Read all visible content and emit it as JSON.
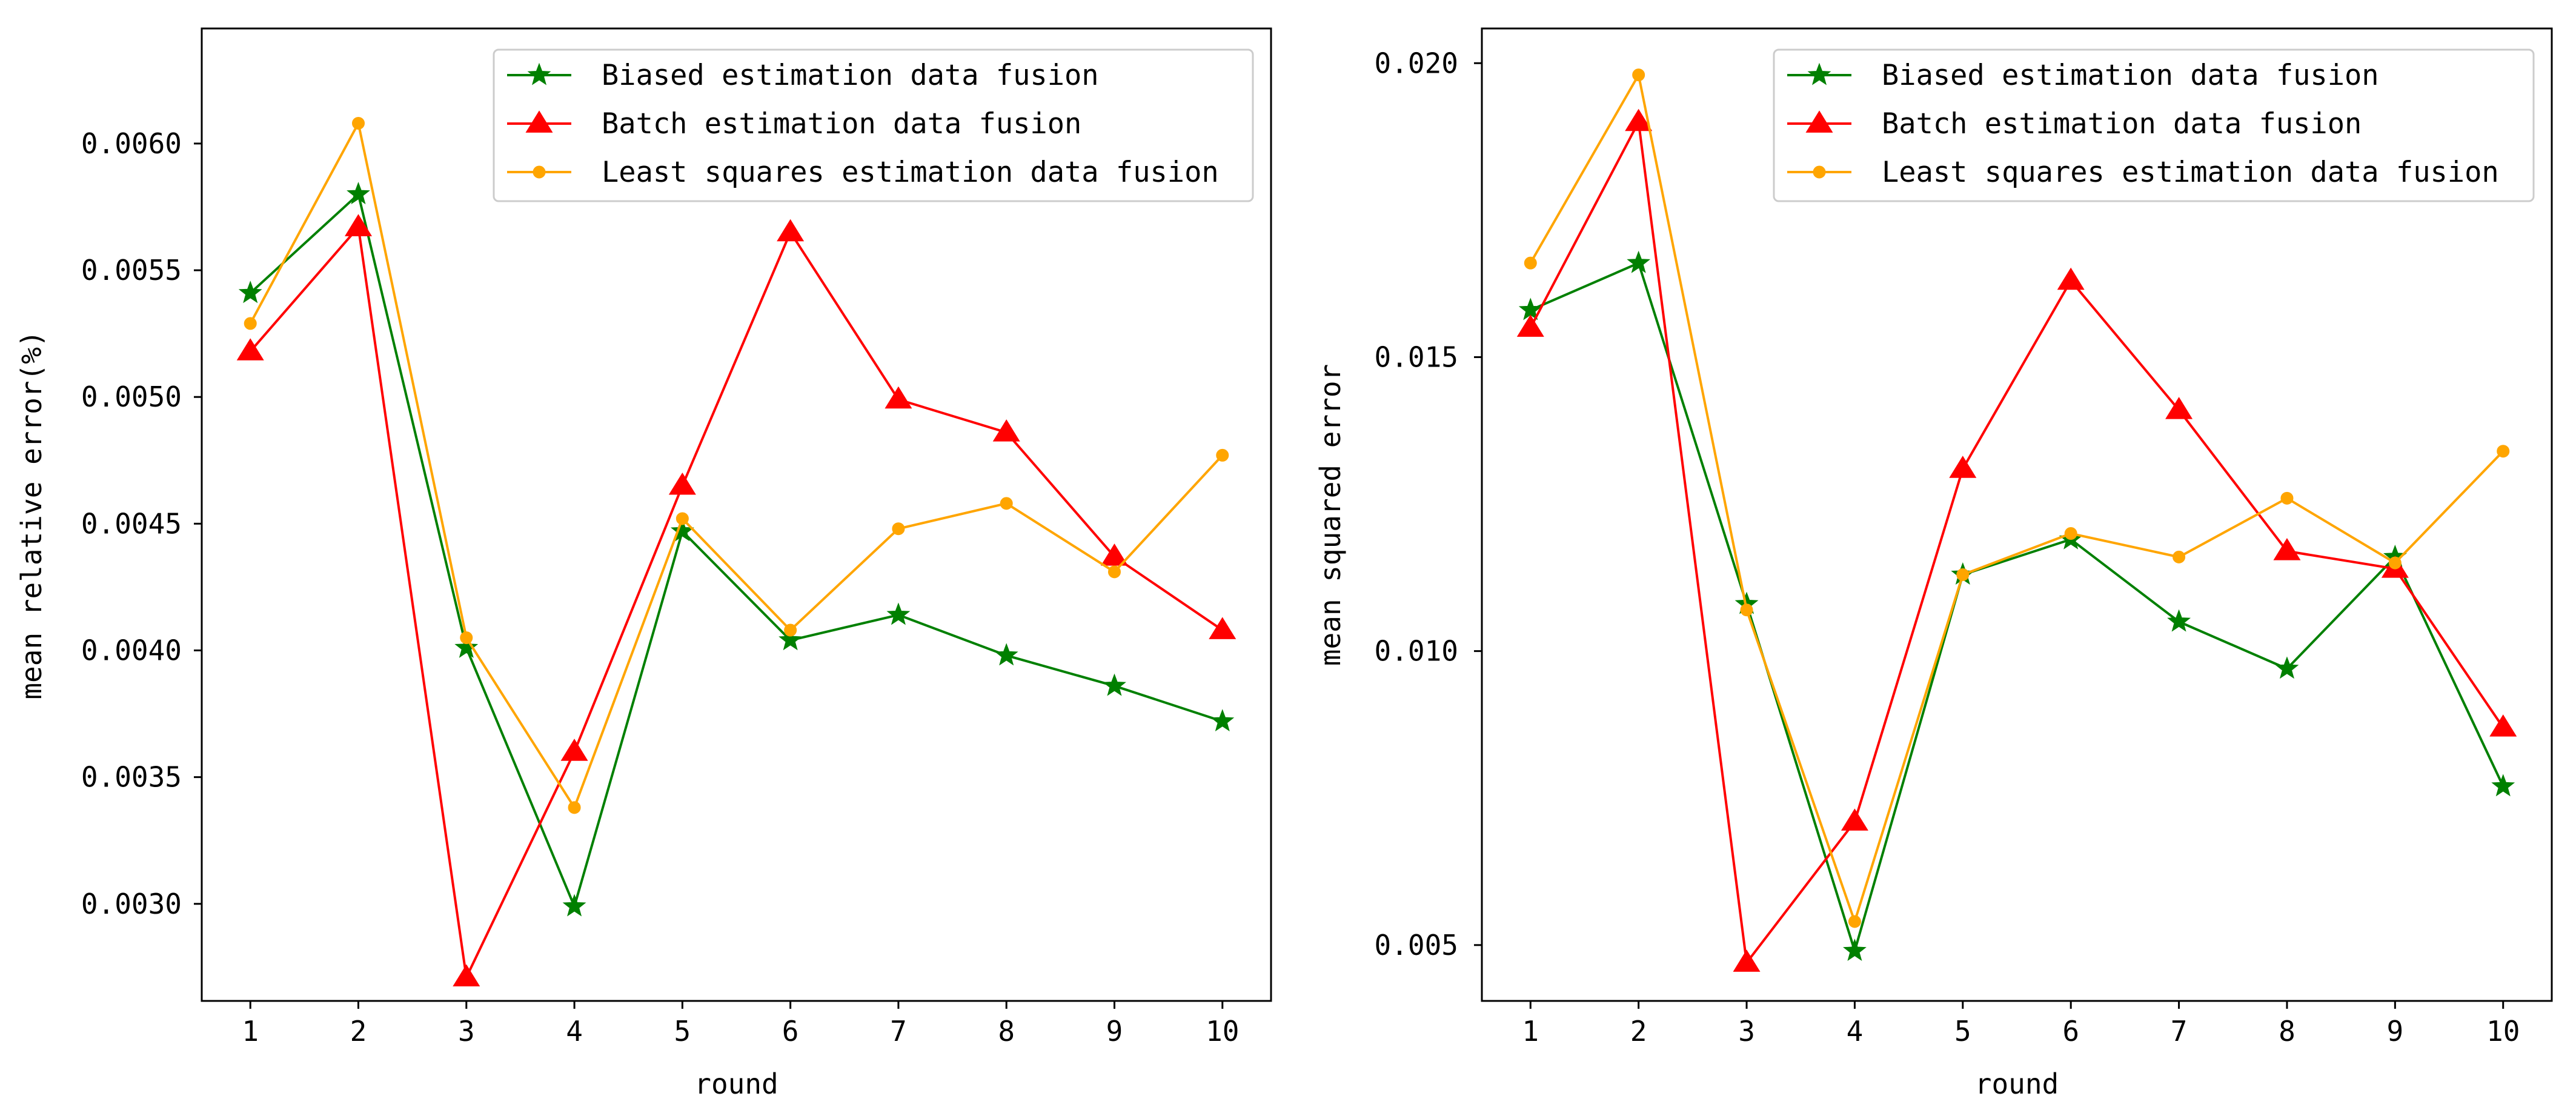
{
  "chart_data": [
    {
      "type": "line",
      "title": "",
      "xlabel": "round",
      "ylabel": "mean relative error(%)",
      "x": [
        1,
        2,
        3,
        4,
        5,
        6,
        7,
        8,
        9,
        10
      ],
      "xticks": [
        "1",
        "2",
        "3",
        "4",
        "5",
        "6",
        "7",
        "8",
        "9",
        "10"
      ],
      "yticks": [
        0.003,
        0.0035,
        0.004,
        0.0045,
        0.005,
        0.0055,
        0.006
      ],
      "ytick_labels": [
        "0.0030",
        "0.0035",
        "0.0040",
        "0.0045",
        "0.0050",
        "0.0055",
        "0.0060"
      ],
      "xlim": [
        0.55,
        10.45
      ],
      "ylim": [
        0.002617,
        0.006454
      ],
      "grid": false,
      "legend_position": "top-right",
      "series": [
        {
          "name": "Biased estimation data fusion",
          "color": "#008000",
          "marker": "star",
          "values": [
            0.00541,
            0.0058,
            0.00401,
            0.00299,
            0.00447,
            0.00404,
            0.00414,
            0.00398,
            0.00386,
            0.00372
          ]
        },
        {
          "name": "Batch estimation data fusion",
          "color": "#ff0000",
          "marker": "triangle",
          "values": [
            0.00518,
            0.00567,
            0.00271,
            0.0036,
            0.00465,
            0.00565,
            0.00499,
            0.00486,
            0.00437,
            0.00408
          ]
        },
        {
          "name": "Least squares estimation data fusion",
          "color": "#ffa500",
          "marker": "dot",
          "values": [
            0.00529,
            0.00608,
            0.00405,
            0.00338,
            0.00452,
            0.00408,
            0.00448,
            0.00458,
            0.00431,
            0.00477
          ]
        }
      ]
    },
    {
      "type": "line",
      "title": "",
      "xlabel": "round",
      "ylabel": "mean squared error",
      "x": [
        1,
        2,
        3,
        4,
        5,
        6,
        7,
        8,
        9,
        10
      ],
      "xticks": [
        "1",
        "2",
        "3",
        "4",
        "5",
        "6",
        "7",
        "8",
        "9",
        "10"
      ],
      "yticks": [
        0.005,
        0.01,
        0.015,
        0.02
      ],
      "ytick_labels": [
        "0.005",
        "0.010",
        "0.015",
        "0.020"
      ],
      "xlim": [
        0.55,
        10.45
      ],
      "ylim": [
        0.00405,
        0.02059
      ],
      "grid": false,
      "legend_position": "top-right",
      "series": [
        {
          "name": "Biased estimation data fusion",
          "color": "#008000",
          "marker": "star",
          "values": [
            0.0158,
            0.0166,
            0.0108,
            0.0049,
            0.0113,
            0.0119,
            0.0105,
            0.0097,
            0.0116,
            0.0077
          ]
        },
        {
          "name": "Batch estimation data fusion",
          "color": "#ff0000",
          "marker": "triangle",
          "values": [
            0.0155,
            0.019,
            0.0047,
            0.0071,
            0.0131,
            0.0163,
            0.0141,
            0.0117,
            0.0114,
            0.0087
          ]
        },
        {
          "name": "Least squares estimation data fusion",
          "color": "#ffa500",
          "marker": "dot",
          "values": [
            0.0166,
            0.0198,
            0.0107,
            0.0054,
            0.0113,
            0.012,
            0.0116,
            0.0126,
            0.0115,
            0.0134
          ]
        }
      ]
    }
  ]
}
